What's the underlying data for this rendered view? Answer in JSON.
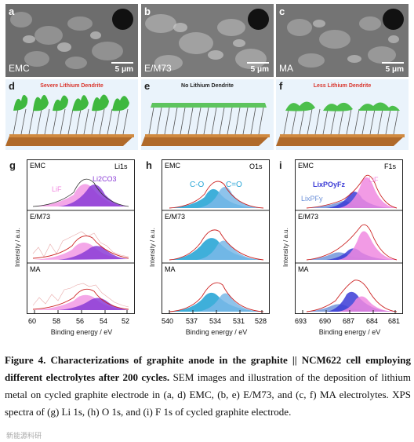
{
  "sem_panels": [
    {
      "panel": "a",
      "label": "EMC",
      "scale": "5 μm"
    },
    {
      "panel": "b",
      "label": "E/M73",
      "scale": "5 μm"
    },
    {
      "panel": "c",
      "label": "MA",
      "scale": "5 μm"
    }
  ],
  "illustrations": [
    {
      "panel": "d",
      "title": "Severe Lithium Dendrite",
      "title_color": "#d9342b"
    },
    {
      "panel": "e",
      "title": "No Lithium Dendrite",
      "title_color": "#222222"
    },
    {
      "panel": "f",
      "title": "Less Lithium Dendrite",
      "title_color": "#d9342b"
    }
  ],
  "xps_panels": [
    {
      "panel": "g",
      "element": "Li1s",
      "rows": [
        "EMC",
        "E/M73",
        "MA"
      ],
      "peak_labels": [
        "LiF",
        "Li2CO3"
      ],
      "peak_colors": [
        "#f089e0",
        "#8a3bd6"
      ],
      "ticks": [
        "60",
        "58",
        "56",
        "54",
        "52"
      ],
      "xlabel": "Binding energy / eV",
      "ylabel": "Intensity / a.u."
    },
    {
      "panel": "h",
      "element": "O1s",
      "rows": [
        "EMC",
        "E/M73",
        "MA"
      ],
      "peak_labels": [
        "C-O",
        "C=O"
      ],
      "peak_colors": [
        "#2aa6d6",
        "#7ab8e8"
      ],
      "ticks": [
        "540",
        "537",
        "534",
        "531",
        "528"
      ],
      "xlabel": "Binding energy / eV",
      "ylabel": "Intensity / a.u."
    },
    {
      "panel": "i",
      "element": "F1s",
      "rows": [
        "EMC",
        "E/M73",
        "MA"
      ],
      "peak_labels": [
        "LixPOyFz",
        "LixPFy",
        "LiF"
      ],
      "peak_colors": [
        "#3b3bd6",
        "#6a8fd8",
        "#f089e0"
      ],
      "ticks": [
        "693",
        "690",
        "687",
        "684",
        "681"
      ],
      "xlabel": "Binding energy / eV",
      "ylabel": "Intensity / a.u."
    }
  ],
  "caption": {
    "bold": "Figure 4. Characterizations of graphite anode in the graphite || NCM622 cell employing different electrolytes after 200 cycles.",
    "text": " SEM images and illustration of the deposition of lithium metal on cycled graphite electrode in (a, d) EMC, (b, e) E/M73, and (c, f) MA electrolytes. XPS spectra of (g) Li 1s, (h) O 1s, and (i) F 1s of cycled graphite electrode."
  },
  "watermark": "新能源科研"
}
